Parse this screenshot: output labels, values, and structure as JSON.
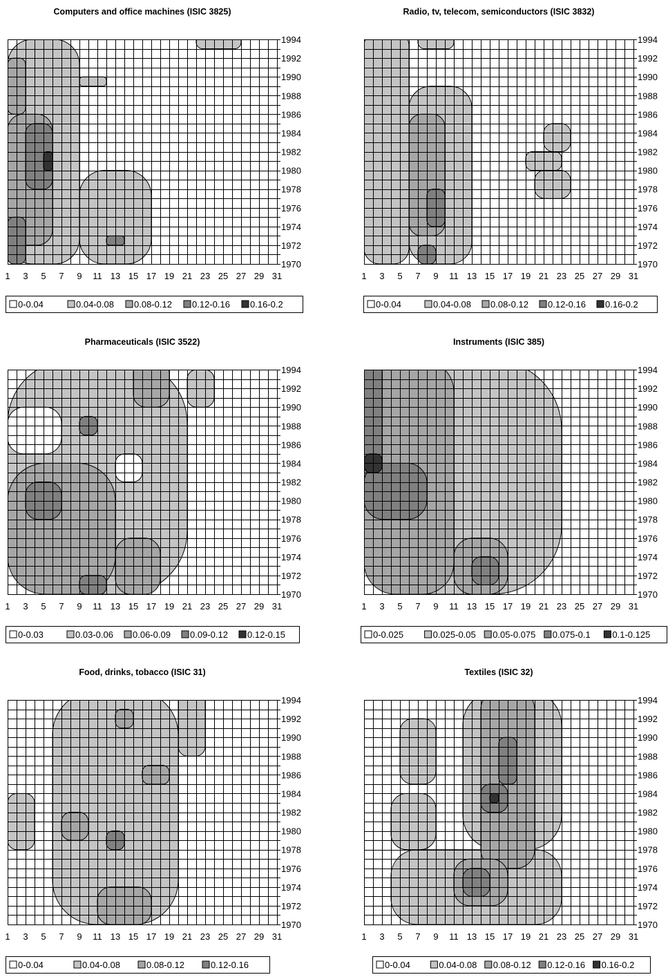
{
  "charts": {
    "colors": {
      "level0": "#ffffff",
      "level1": "#c4c4c4",
      "level2": "#a6a6a6",
      "level3": "#808080",
      "level4": "#333333",
      "grid": "#000000"
    },
    "x_ticks": [
      "1",
      "3",
      "5",
      "7",
      "9",
      "11",
      "13",
      "15",
      "17",
      "19",
      "21",
      "23",
      "25",
      "27",
      "29",
      "31"
    ],
    "y_ticks": [
      "1994",
      "1992",
      "1990",
      "1988",
      "1986",
      "1984",
      "1982",
      "1980",
      "1978",
      "1976",
      "1974",
      "1972",
      "1970"
    ]
  },
  "chart_data": [
    {
      "type": "heatmap",
      "title": "Computers and office machines (ISIC 3825)",
      "x_range": [
        1,
        31
      ],
      "y_range": [
        1970,
        1994
      ],
      "grid": true,
      "legend_position": "bottom",
      "legend": [
        "0-0.04",
        "0.04-0.08",
        "0.08-0.12",
        "0.12-0.16",
        "0.16-0.2"
      ],
      "regions": [
        {
          "level": 1,
          "x": [
            1,
            9
          ],
          "y": [
            1970,
            1994
          ]
        },
        {
          "level": 1,
          "x": [
            9,
            17
          ],
          "y": [
            1970,
            1980
          ]
        },
        {
          "level": 1,
          "x": [
            22,
            27
          ],
          "y": [
            1993,
            1995
          ]
        },
        {
          "level": 1,
          "x": [
            9,
            12
          ],
          "y": [
            1989,
            1990
          ]
        },
        {
          "level": 2,
          "x": [
            1,
            6
          ],
          "y": [
            1972,
            1986
          ]
        },
        {
          "level": 2,
          "x": [
            1,
            3
          ],
          "y": [
            1986,
            1992
          ]
        },
        {
          "level": 3,
          "x": [
            3,
            6
          ],
          "y": [
            1978,
            1985
          ]
        },
        {
          "level": 3,
          "x": [
            1,
            3
          ],
          "y": [
            1970,
            1975
          ]
        },
        {
          "level": 4,
          "x": [
            5,
            6
          ],
          "y": [
            1980,
            1982
          ]
        },
        {
          "level": 3,
          "x": [
            12,
            14
          ],
          "y": [
            1972,
            1973
          ]
        }
      ]
    },
    {
      "type": "heatmap",
      "title": "Radio, tv, telecom, semiconductors (ISIC 3832)",
      "x_range": [
        1,
        31
      ],
      "y_range": [
        1970,
        1994
      ],
      "grid": true,
      "legend_position": "bottom",
      "legend": [
        "0-0.04",
        "0.04-0.08",
        "0.08-0.12",
        "0.12-0.16",
        "0.16-0.2"
      ],
      "regions": [
        {
          "level": 1,
          "x": [
            1,
            6
          ],
          "y": [
            1970,
            1995
          ]
        },
        {
          "level": 1,
          "x": [
            6,
            13
          ],
          "y": [
            1970,
            1989
          ]
        },
        {
          "level": 1,
          "x": [
            7,
            11
          ],
          "y": [
            1993,
            1995
          ]
        },
        {
          "level": 1,
          "x": [
            19,
            23
          ],
          "y": [
            1980,
            1982
          ]
        },
        {
          "level": 1,
          "x": [
            21,
            24
          ],
          "y": [
            1982,
            1985
          ]
        },
        {
          "level": 1,
          "x": [
            20,
            24
          ],
          "y": [
            1977,
            1980
          ]
        },
        {
          "level": 2,
          "x": [
            6,
            10
          ],
          "y": [
            1973,
            1986
          ]
        },
        {
          "level": 3,
          "x": [
            8,
            10
          ],
          "y": [
            1974,
            1978
          ]
        },
        {
          "level": 3,
          "x": [
            7,
            9
          ],
          "y": [
            1970,
            1972
          ]
        }
      ]
    },
    {
      "type": "heatmap",
      "title": "Pharmaceuticals (ISIC 3522)",
      "x_range": [
        1,
        31
      ],
      "y_range": [
        1970,
        1994
      ],
      "grid": true,
      "legend_position": "bottom",
      "legend": [
        "0-0.03",
        "0.03-0.06",
        "0.06-0.09",
        "0.09-0.12",
        "0.12-0.15"
      ],
      "regions": [
        {
          "level": 1,
          "x": [
            1,
            21
          ],
          "y": [
            1970,
            1995
          ]
        },
        {
          "level": 1,
          "x": [
            21,
            24
          ],
          "y": [
            1990,
            1994
          ]
        },
        {
          "level": 0,
          "x": [
            1,
            7
          ],
          "y": [
            1985,
            1990
          ]
        },
        {
          "level": 0,
          "x": [
            13,
            16
          ],
          "y": [
            1982,
            1985
          ]
        },
        {
          "level": 2,
          "x": [
            1,
            13
          ],
          "y": [
            1970,
            1984
          ]
        },
        {
          "level": 2,
          "x": [
            13,
            18
          ],
          "y": [
            1970,
            1976
          ]
        },
        {
          "level": 2,
          "x": [
            15,
            19
          ],
          "y": [
            1990,
            1995
          ]
        },
        {
          "level": 3,
          "x": [
            3,
            7
          ],
          "y": [
            1978,
            1982
          ]
        },
        {
          "level": 3,
          "x": [
            9,
            12
          ],
          "y": [
            1970,
            1972
          ]
        },
        {
          "level": 3,
          "x": [
            9,
            11
          ],
          "y": [
            1987,
            1989
          ]
        }
      ]
    },
    {
      "type": "heatmap",
      "title": "Instruments (ISIC 385)",
      "x_range": [
        1,
        31
      ],
      "y_range": [
        1970,
        1994
      ],
      "grid": true,
      "legend_position": "bottom",
      "legend": [
        "0-0.025",
        "0.025-0.05",
        "0.05-0.075",
        "0.075-0.1",
        "0.1-0.125"
      ],
      "regions": [
        {
          "level": 1,
          "x": [
            1,
            23
          ],
          "y": [
            1970,
            1995
          ]
        },
        {
          "level": 2,
          "x": [
            1,
            11
          ],
          "y": [
            1970,
            1995
          ]
        },
        {
          "level": 2,
          "x": [
            11,
            17
          ],
          "y": [
            1970,
            1976
          ]
        },
        {
          "level": 3,
          "x": [
            1,
            3
          ],
          "y": [
            1982,
            1995
          ]
        },
        {
          "level": 3,
          "x": [
            1,
            8
          ],
          "y": [
            1978,
            1984
          ]
        },
        {
          "level": 3,
          "x": [
            13,
            16
          ],
          "y": [
            1971,
            1974
          ]
        },
        {
          "level": 4,
          "x": [
            1,
            3
          ],
          "y": [
            1983,
            1985
          ]
        }
      ]
    },
    {
      "type": "heatmap",
      "title": "Food, drinks, tobacco (ISIC 31)",
      "x_range": [
        1,
        31
      ],
      "y_range": [
        1970,
        1994
      ],
      "grid": true,
      "legend_position": "bottom",
      "legend": [
        "0-0.04",
        "0.04-0.08",
        "0.08-0.12",
        "0.12-0.16"
      ],
      "regions": [
        {
          "level": 1,
          "x": [
            6,
            20
          ],
          "y": [
            1970,
            1995
          ]
        },
        {
          "level": 1,
          "x": [
            20,
            23
          ],
          "y": [
            1988,
            1995
          ]
        },
        {
          "level": 1,
          "x": [
            1,
            4
          ],
          "y": [
            1978,
            1984
          ]
        },
        {
          "level": 2,
          "x": [
            11,
            17
          ],
          "y": [
            1970,
            1974
          ]
        },
        {
          "level": 2,
          "x": [
            7,
            10
          ],
          "y": [
            1979,
            1982
          ]
        },
        {
          "level": 2,
          "x": [
            16,
            19
          ],
          "y": [
            1985,
            1987
          ]
        },
        {
          "level": 2,
          "x": [
            13,
            15
          ],
          "y": [
            1991,
            1993
          ]
        },
        {
          "level": 3,
          "x": [
            12,
            14
          ],
          "y": [
            1978,
            1980
          ]
        }
      ]
    },
    {
      "type": "heatmap",
      "title": "Textiles (ISIC 32)",
      "x_range": [
        1,
        31
      ],
      "y_range": [
        1970,
        1994
      ],
      "grid": true,
      "legend_position": "bottom",
      "legend": [
        "0-0.04",
        "0.04-0.08",
        "0.08-0.12",
        "0.12-0.16",
        "0.16-0.2"
      ],
      "regions": [
        {
          "level": 1,
          "x": [
            4,
            23
          ],
          "y": [
            1970,
            1978
          ]
        },
        {
          "level": 1,
          "x": [
            12,
            23
          ],
          "y": [
            1978,
            1995
          ]
        },
        {
          "level": 1,
          "x": [
            5,
            9
          ],
          "y": [
            1985,
            1992
          ]
        },
        {
          "level": 1,
          "x": [
            4,
            9
          ],
          "y": [
            1978,
            1984
          ]
        },
        {
          "level": 2,
          "x": [
            14,
            20
          ],
          "y": [
            1976,
            1995
          ]
        },
        {
          "level": 2,
          "x": [
            11,
            17
          ],
          "y": [
            1972,
            1977
          ]
        },
        {
          "level": 3,
          "x": [
            16,
            18
          ],
          "y": [
            1985,
            1990
          ]
        },
        {
          "level": 3,
          "x": [
            14,
            17
          ],
          "y": [
            1982,
            1985
          ]
        },
        {
          "level": 3,
          "x": [
            12,
            15
          ],
          "y": [
            1973,
            1976
          ]
        },
        {
          "level": 4,
          "x": [
            15,
            16
          ],
          "y": [
            1983,
            1984
          ]
        }
      ]
    }
  ]
}
